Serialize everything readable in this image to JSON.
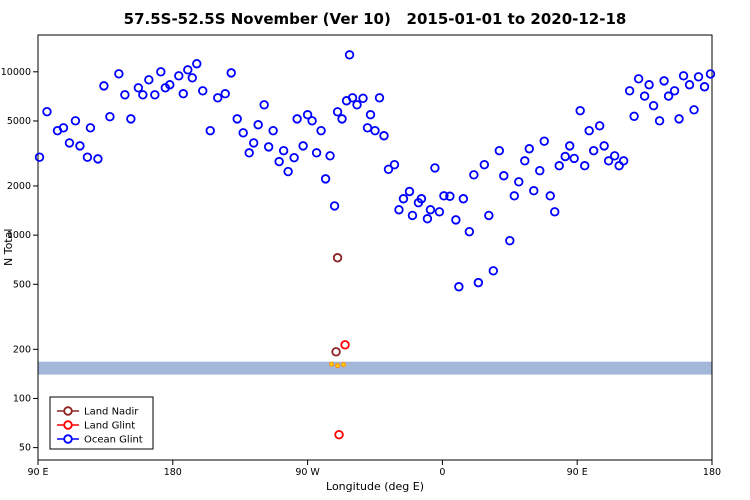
{
  "chart_data": {
    "type": "scatter",
    "title": "57.5S-52.5S November (Ver 10)   2015-01-01 to 2020-12-18",
    "xlabel": "Longitude (deg E)",
    "ylabel": "N Total",
    "y_scale": "log",
    "grid": false,
    "xlim": [
      90,
      540
    ],
    "ylim": [
      42,
      16800
    ],
    "x_ticks": [
      {
        "value": 90,
        "label": "90 E"
      },
      {
        "value": 180,
        "label": "180"
      },
      {
        "value": 270,
        "label": "90 W"
      },
      {
        "value": 360,
        "label": "0"
      },
      {
        "value": 450,
        "label": "90 E"
      },
      {
        "value": 540,
        "label": "180"
      }
    ],
    "y_ticks": [
      50,
      100,
      200,
      500,
      1000,
      2000,
      5000,
      10000
    ],
    "band": {
      "from": 140,
      "to": 168,
      "color": "#A3B8D8"
    },
    "band_markers": {
      "color": "#FF8C00",
      "fill": "#FFD700",
      "points": [
        [
          286,
          162
        ],
        [
          290,
          159
        ],
        [
          294,
          161
        ]
      ]
    },
    "legend": {
      "position": "bottom-left"
    },
    "series": [
      {
        "name": "Land Nadir",
        "color": "#8B2323",
        "points": [
          [
            290,
            727
          ],
          [
            289,
            193
          ]
        ]
      },
      {
        "name": "Land Glint",
        "color": "#FF0000",
        "points": [
          [
            295,
            213
          ],
          [
            291,
            60
          ]
        ]
      },
      {
        "name": "Ocean Glint",
        "color": "#0000FF",
        "points": [
          [
            91,
            3000
          ],
          [
            96,
            5700
          ],
          [
            103,
            4360
          ],
          [
            107,
            4540
          ],
          [
            111,
            3670
          ],
          [
            115,
            5010
          ],
          [
            118,
            3520
          ],
          [
            123,
            3000
          ],
          [
            125,
            4540
          ],
          [
            130,
            2930
          ],
          [
            134,
            8200
          ],
          [
            138,
            5310
          ],
          [
            144,
            9720
          ],
          [
            148,
            7230
          ],
          [
            152,
            5150
          ],
          [
            157,
            7980
          ],
          [
            160,
            7230
          ],
          [
            164,
            8930
          ],
          [
            168,
            7230
          ],
          [
            172,
            10000
          ],
          [
            175,
            7980
          ],
          [
            178,
            8330
          ],
          [
            184,
            9450
          ],
          [
            187,
            7340
          ],
          [
            190,
            10280
          ],
          [
            193,
            9190
          ],
          [
            196,
            11200
          ],
          [
            200,
            7650
          ],
          [
            205,
            4360
          ],
          [
            210,
            6930
          ],
          [
            215,
            7340
          ],
          [
            219,
            9850
          ],
          [
            223,
            5150
          ],
          [
            227,
            4230
          ],
          [
            231,
            3190
          ],
          [
            234,
            3670
          ],
          [
            237,
            4740
          ],
          [
            241,
            6280
          ],
          [
            244,
            3470
          ],
          [
            247,
            4360
          ],
          [
            251,
            2820
          ],
          [
            254,
            3290
          ],
          [
            257,
            2450
          ],
          [
            261,
            2980
          ],
          [
            263,
            5150
          ],
          [
            267,
            3520
          ],
          [
            270,
            5460
          ],
          [
            273,
            5010
          ],
          [
            276,
            3190
          ],
          [
            279,
            4360
          ],
          [
            282,
            2210
          ],
          [
            285,
            3060
          ],
          [
            288,
            1510
          ],
          [
            290,
            5690
          ],
          [
            293,
            5150
          ],
          [
            296,
            6650
          ],
          [
            298,
            12700
          ],
          [
            300,
            6930
          ],
          [
            303,
            6280
          ],
          [
            307,
            6880
          ],
          [
            310,
            4540
          ],
          [
            312,
            5460
          ],
          [
            315,
            4360
          ],
          [
            318,
            6930
          ],
          [
            321,
            4060
          ],
          [
            324,
            2530
          ],
          [
            328,
            2700
          ],
          [
            331,
            1430
          ],
          [
            334,
            1670
          ],
          [
            338,
            1850
          ],
          [
            340,
            1320
          ],
          [
            344,
            1580
          ],
          [
            346,
            1670
          ],
          [
            350,
            1260
          ],
          [
            352,
            1430
          ],
          [
            355,
            2580
          ],
          [
            358,
            1390
          ],
          [
            361,
            1740
          ],
          [
            365,
            1730
          ],
          [
            369,
            1240
          ],
          [
            371,
            483
          ],
          [
            374,
            1670
          ],
          [
            378,
            1050
          ],
          [
            381,
            2340
          ],
          [
            384,
            512
          ],
          [
            388,
            2700
          ],
          [
            391,
            1320
          ],
          [
            394,
            605
          ],
          [
            398,
            3290
          ],
          [
            401,
            2310
          ],
          [
            405,
            925
          ],
          [
            408,
            1740
          ],
          [
            411,
            2120
          ],
          [
            415,
            2850
          ],
          [
            418,
            3380
          ],
          [
            421,
            1870
          ],
          [
            425,
            2480
          ],
          [
            428,
            3760
          ],
          [
            432,
            1740
          ],
          [
            435,
            1390
          ],
          [
            438,
            2660
          ],
          [
            442,
            3030
          ],
          [
            445,
            3520
          ],
          [
            448,
            2950
          ],
          [
            452,
            5780
          ],
          [
            455,
            2660
          ],
          [
            458,
            4360
          ],
          [
            461,
            3290
          ],
          [
            465,
            4670
          ],
          [
            468,
            3520
          ],
          [
            471,
            2850
          ],
          [
            475,
            3060
          ],
          [
            478,
            2660
          ],
          [
            481,
            2850
          ],
          [
            485,
            7650
          ],
          [
            488,
            5340
          ],
          [
            491,
            9060
          ],
          [
            495,
            7100
          ],
          [
            498,
            8330
          ],
          [
            501,
            6200
          ],
          [
            505,
            5010
          ],
          [
            508,
            8800
          ],
          [
            511,
            7100
          ],
          [
            515,
            7650
          ],
          [
            518,
            5150
          ],
          [
            521,
            9450
          ],
          [
            525,
            8330
          ],
          [
            528,
            5850
          ],
          [
            531,
            9320
          ],
          [
            535,
            8100
          ],
          [
            539,
            9700
          ]
        ]
      }
    ]
  }
}
